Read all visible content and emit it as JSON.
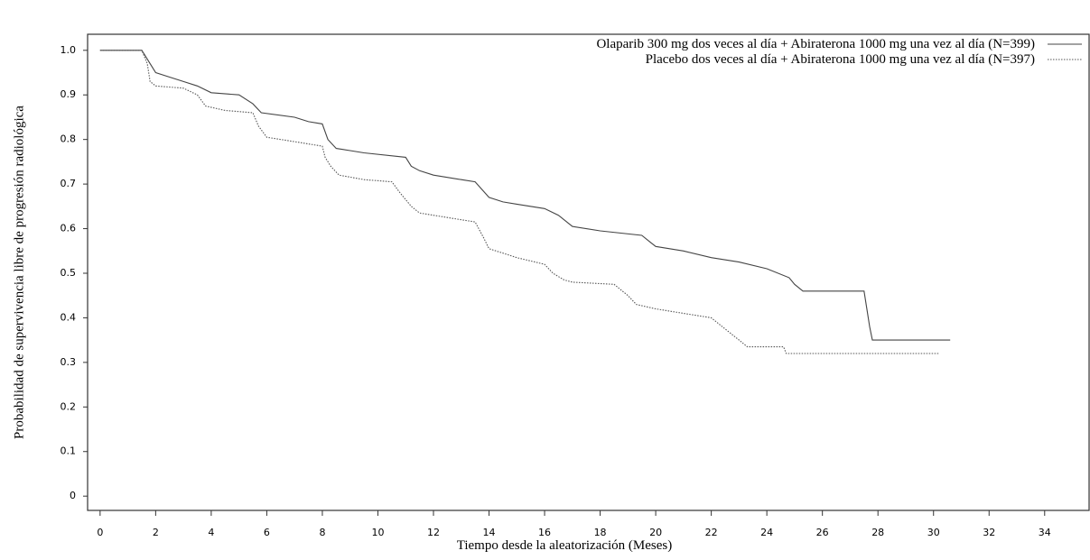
{
  "chart_data": {
    "type": "line",
    "ylabel": "Probabilidad de supervivencia libre de progresión radiológica",
    "xlabel": "Tiempo desde la aleatorización (Meses)",
    "xlim": [
      -0.45,
      35.6
    ],
    "ylim": [
      -0.032,
      1.036
    ],
    "xticks": [
      0,
      2,
      4,
      6,
      8,
      10,
      12,
      14,
      16,
      18,
      20,
      22,
      24,
      26,
      28,
      30,
      32,
      34
    ],
    "yticks": [
      0,
      0.1,
      0.2,
      0.3,
      0.4,
      0.5,
      0.6,
      0.7,
      0.8,
      0.9,
      {
        "value": 1,
        "label": "1.0"
      }
    ],
    "legend": "top-right",
    "series": [
      {
        "name": "Olaparib 300 mg dos veces al día + Abiraterona 1000 mg una vez al día (N=399)",
        "color": "#444444",
        "dash": "solid",
        "x": [
          0,
          1.5,
          1.6,
          1.8,
          2,
          2.5,
          3,
          3.5,
          4,
          5,
          5.5,
          5.8,
          7,
          7.5,
          8,
          8.2,
          8.5,
          9,
          9.5,
          11,
          11.2,
          11.5,
          12,
          13,
          13.5,
          14,
          14.5,
          15,
          16,
          16.5,
          17,
          18,
          19.5,
          19.8,
          20,
          21,
          22,
          23,
          24,
          24.8,
          25,
          25.3,
          27.5,
          27.6,
          27.7,
          27.8,
          30.6
        ],
        "values": [
          1.0,
          1.0,
          0.99,
          0.97,
          0.95,
          0.94,
          0.93,
          0.92,
          0.905,
          0.9,
          0.88,
          0.86,
          0.85,
          0.84,
          0.835,
          0.8,
          0.78,
          0.775,
          0.77,
          0.76,
          0.74,
          0.73,
          0.72,
          0.71,
          0.705,
          0.67,
          0.66,
          0.655,
          0.645,
          0.63,
          0.605,
          0.595,
          0.585,
          0.57,
          0.56,
          0.55,
          0.535,
          0.525,
          0.51,
          0.49,
          0.475,
          0.46,
          0.46,
          0.42,
          0.38,
          0.35,
          0.35
        ]
      },
      {
        "name": "Placebo dos veces al día + Abiraterona 1000 mg una vez al día (N=397)",
        "color": "#555555",
        "dash": "dotted",
        "x": [
          0,
          1.5,
          1.7,
          1.8,
          2,
          3,
          3.5,
          3.8,
          4.5,
          5.5,
          5.7,
          6,
          7,
          8,
          8.1,
          8.3,
          8.6,
          9.5,
          10.5,
          10.8,
          11.2,
          11.5,
          12,
          13,
          13.5,
          13.8,
          14,
          14.5,
          15,
          16,
          16.3,
          16.7,
          17,
          18.5,
          19,
          19.3,
          20,
          21,
          22,
          22.5,
          23,
          23.3,
          24.6,
          24.7,
          30.2
        ],
        "values": [
          1.0,
          1.0,
          0.97,
          0.93,
          0.92,
          0.915,
          0.9,
          0.875,
          0.865,
          0.86,
          0.83,
          0.805,
          0.795,
          0.785,
          0.76,
          0.74,
          0.72,
          0.71,
          0.705,
          0.68,
          0.65,
          0.635,
          0.63,
          0.62,
          0.615,
          0.58,
          0.555,
          0.545,
          0.535,
          0.52,
          0.5,
          0.485,
          0.48,
          0.475,
          0.45,
          0.43,
          0.42,
          0.41,
          0.4,
          0.375,
          0.35,
          0.335,
          0.335,
          0.32,
          0.32
        ]
      }
    ]
  }
}
